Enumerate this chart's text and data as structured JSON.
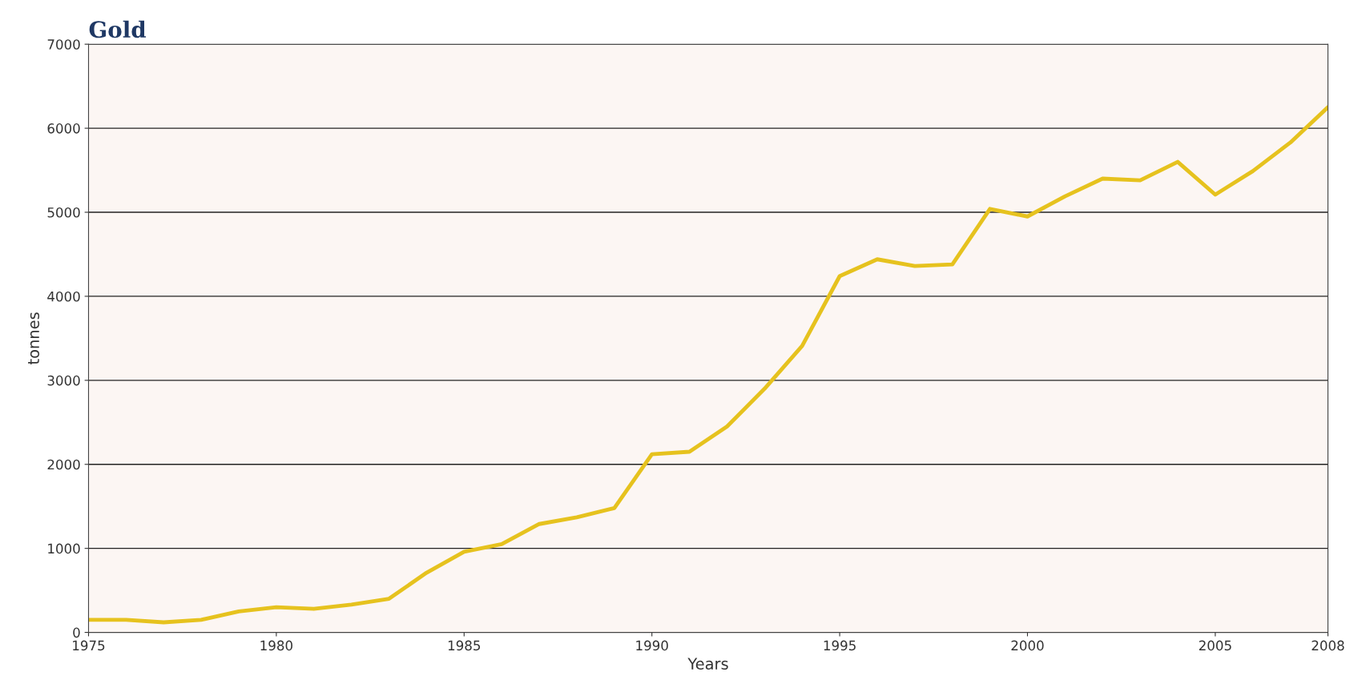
{
  "chart_data": {
    "type": "line",
    "title": "Gold",
    "xlabel": "Years",
    "ylabel": "tonnes",
    "x": [
      1975,
      1976,
      1977,
      1978,
      1979,
      1980,
      1981,
      1982,
      1983,
      1984,
      1985,
      1986,
      1987,
      1988,
      1989,
      1990,
      1991,
      1992,
      1993,
      1994,
      1995,
      1996,
      1997,
      1998,
      1999,
      2000,
      2001,
      2002,
      2003,
      2004,
      2005,
      2006,
      2007,
      2008
    ],
    "series": [
      {
        "color": "#e6c21e",
        "values": [
          150,
          150,
          120,
          150,
          250,
          300,
          280,
          330,
          400,
          710,
          960,
          1050,
          1290,
          1370,
          1480,
          2120,
          2150,
          2450,
          2900,
          3410,
          4240,
          4440,
          4360,
          4380,
          5040,
          4950,
          5190,
          5400,
          5380,
          5600,
          5210,
          5490,
          5830,
          6250
        ]
      }
    ],
    "xlim": [
      1975,
      2008
    ],
    "xticks": [
      1975,
      1980,
      1985,
      1990,
      1995,
      2000,
      2005,
      2008
    ],
    "ylim": [
      0,
      7000
    ],
    "yticks": [
      0,
      1000,
      2000,
      3000,
      4000,
      5000,
      6000,
      7000
    ],
    "grid": "y",
    "marker": "none",
    "line_style": "solid",
    "legend": false
  }
}
